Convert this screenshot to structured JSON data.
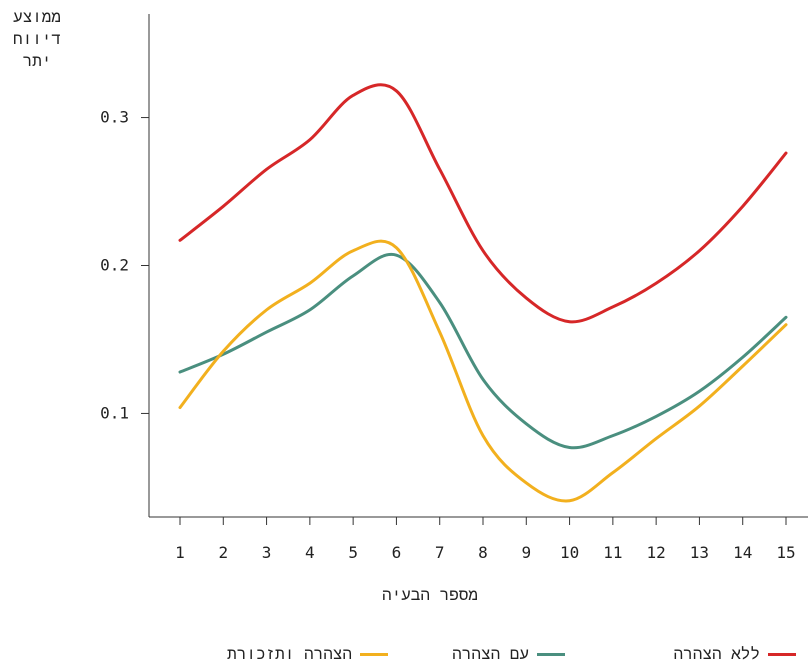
{
  "chart_data": {
    "type": "line",
    "ylabel": "ממוצע דיווח יתר",
    "xlabel": "מספר הבעיה",
    "x": [
      1,
      2,
      3,
      4,
      5,
      6,
      7,
      8,
      9,
      10,
      11,
      12,
      13,
      14,
      15
    ],
    "ylim": [
      0.03,
      0.37
    ],
    "yticks": [
      0.1,
      0.2,
      0.3
    ],
    "grid": false,
    "legend_position": "bottom",
    "series": [
      {
        "name": "ללא הצהרה",
        "color": "#d62728",
        "values": [
          0.217,
          0.24,
          0.265,
          0.285,
          0.315,
          0.318,
          0.265,
          0.21,
          0.178,
          0.162,
          0.172,
          0.188,
          0.21,
          0.24,
          0.276
        ]
      },
      {
        "name": "עם הצהרה",
        "color": "#4a8f7f",
        "values": [
          0.128,
          0.14,
          0.155,
          0.17,
          0.193,
          0.207,
          0.175,
          0.123,
          0.093,
          0.077,
          0.085,
          0.098,
          0.115,
          0.138,
          0.165
        ]
      },
      {
        "name": "הצהרה ותזכורת",
        "color": "#f2b01e",
        "values": [
          0.104,
          0.142,
          0.17,
          0.188,
          0.21,
          0.212,
          0.155,
          0.085,
          0.053,
          0.041,
          0.06,
          0.083,
          0.105,
          0.132,
          0.16
        ]
      }
    ]
  }
}
